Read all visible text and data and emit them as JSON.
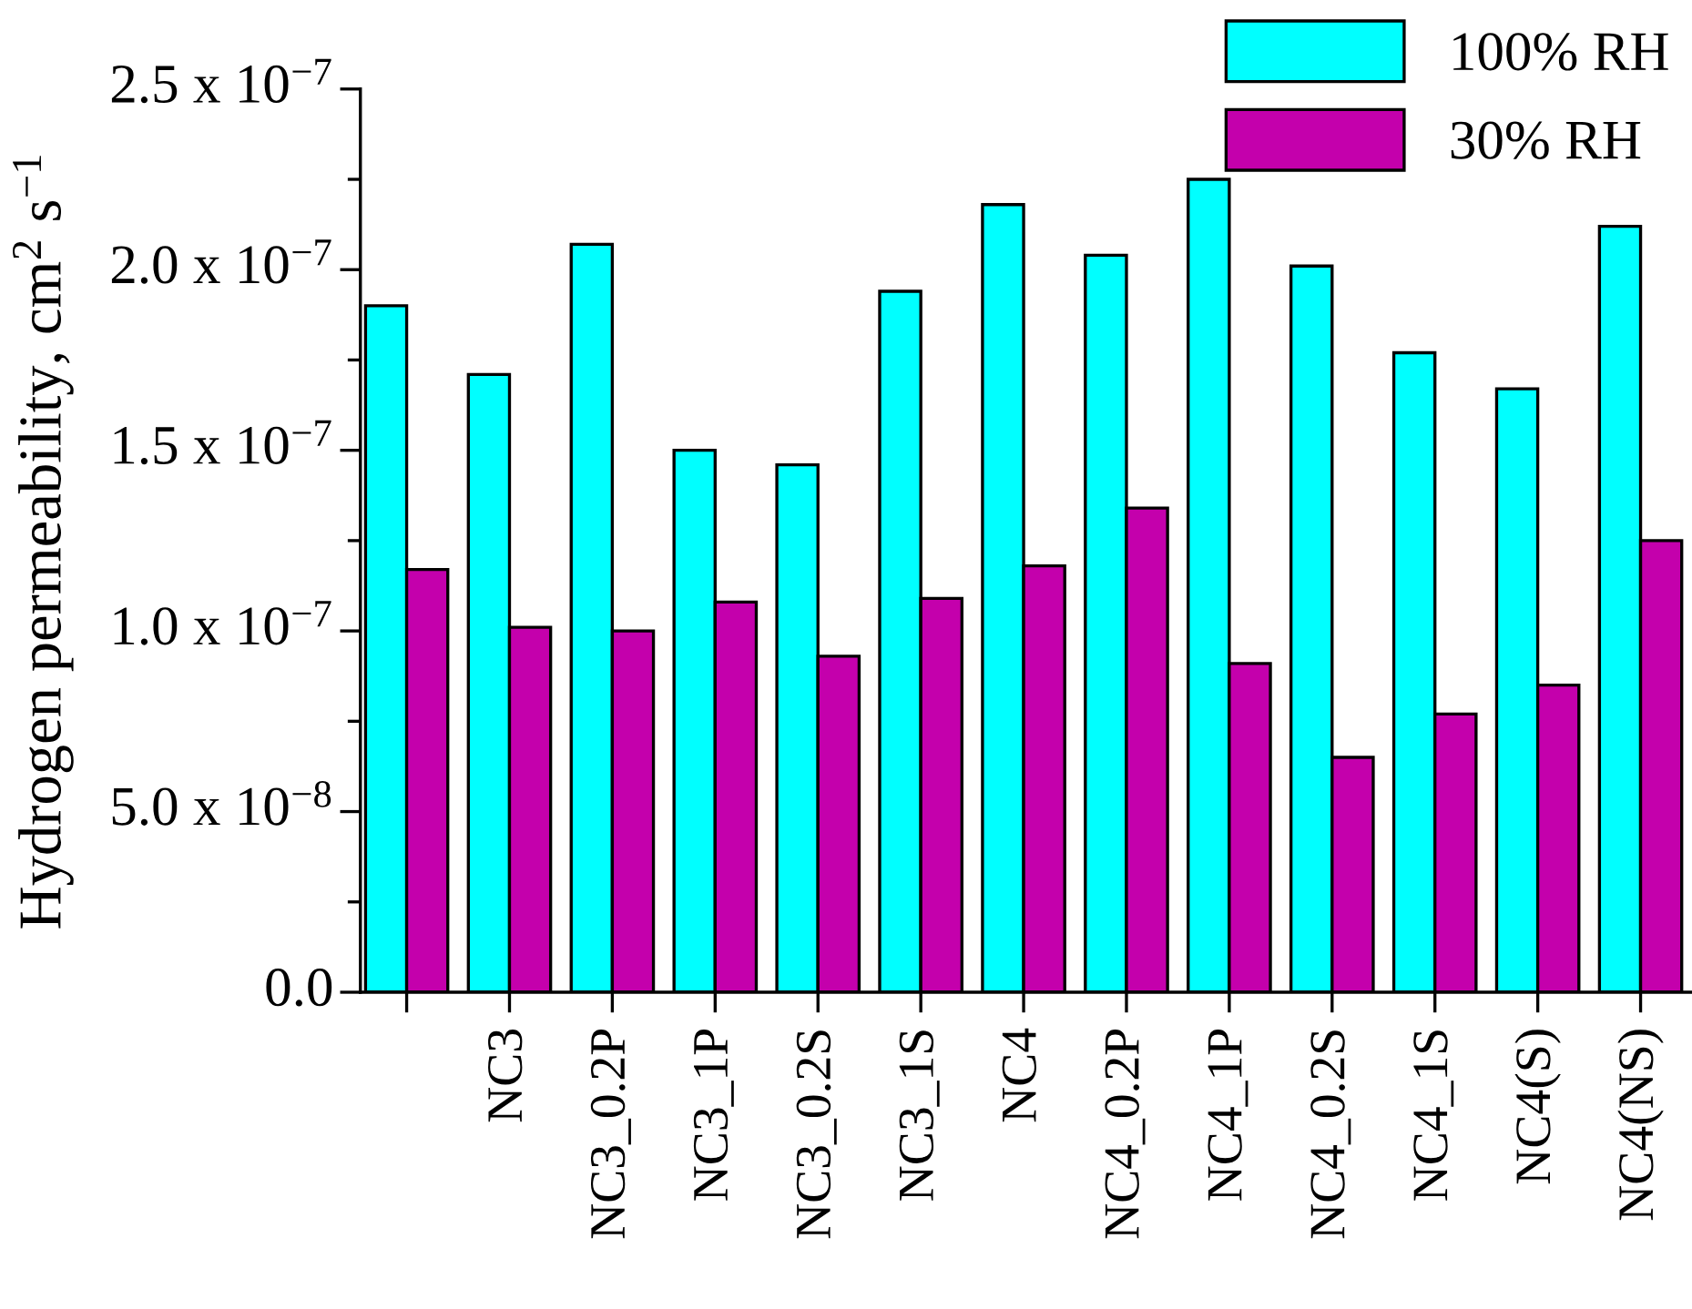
{
  "chart_data": {
    "type": "bar",
    "ylabel": "Hydrogen permeability, cm$^{2}$ s$^{−1}$",
    "categories": [
      null,
      "NC3",
      "NC3_0.2P",
      "NC3_1P",
      "NC3_0.2S",
      "NC3_1S",
      "NC4",
      "NC4_0.2P",
      "NC4_1P",
      "NC4_0.2S",
      "NC4_1S",
      "NC4(S)",
      "NC4(NS)"
    ],
    "series": [
      {
        "name": "100% RH",
        "color": "#00ffff",
        "values": [
          1.9e-07,
          1.71e-07,
          2.07e-07,
          1.5e-07,
          1.46e-07,
          1.94e-07,
          2.18e-07,
          2.04e-07,
          2.25e-07,
          2.01e-07,
          1.77e-07,
          1.67e-07,
          2.12e-07
        ]
      },
      {
        "name": "30% RH",
        "color": "#c400ac",
        "values": [
          1.17e-07,
          1.01e-07,
          1e-07,
          1.08e-07,
          9.3e-08,
          1.09e-07,
          1.18e-07,
          1.34e-07,
          9.1e-08,
          6.5e-08,
          7.7e-08,
          8.5e-08,
          1.25e-07
        ]
      }
    ],
    "ylim": [
      0,
      2.5e-07
    ],
    "yticks": [
      {
        "value": 0,
        "label": "0.0"
      },
      {
        "value": 2.5e-08,
        "label": null
      },
      {
        "value": 5e-08,
        "label": "5.0 x 10$^{−8}$"
      },
      {
        "value": 7.5e-08,
        "label": null
      },
      {
        "value": 1e-07,
        "label": "1.0 x 10$^{−7}$"
      },
      {
        "value": 1.25e-07,
        "label": null
      },
      {
        "value": 1.5e-07,
        "label": "1.5 x 10$^{−7}$"
      },
      {
        "value": 1.75e-07,
        "label": null
      },
      {
        "value": 2e-07,
        "label": "2.0 x 10$^{−7}$"
      },
      {
        "value": 2.25e-07,
        "label": null
      },
      {
        "value": 2.5e-07,
        "label": "2.5 x 10$^{−7}$"
      }
    ],
    "grid": false,
    "legend": "top right"
  }
}
